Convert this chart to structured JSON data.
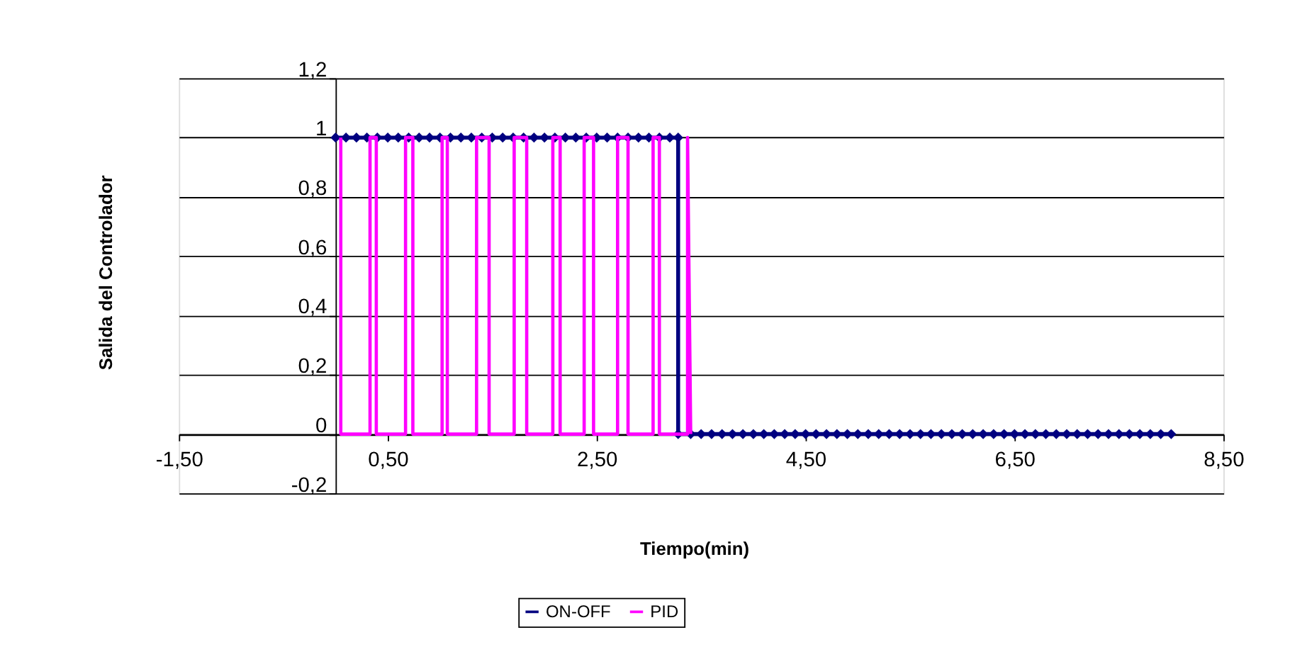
{
  "chart_data": {
    "type": "line",
    "xlabel": "Tiempo(min)",
    "ylabel": "Salida del Controlador",
    "xlim": [
      -1.5,
      8.5
    ],
    "xticks": [
      {
        "value": -1.5,
        "label": "-1,50"
      },
      {
        "value": 0.5,
        "label": "0,50"
      },
      {
        "value": 2.5,
        "label": "2,50"
      },
      {
        "value": 4.5,
        "label": "4,50"
      },
      {
        "value": 6.5,
        "label": "6,50"
      },
      {
        "value": 8.5,
        "label": "8,50"
      }
    ],
    "ylim": [
      -0.2,
      1.2
    ],
    "yticks": [
      {
        "value": -0.2,
        "label": "-0,2"
      },
      {
        "value": 0,
        "label": "0"
      },
      {
        "value": 0.2,
        "label": "0,2"
      },
      {
        "value": 0.4,
        "label": "0,4"
      },
      {
        "value": 0.6,
        "label": "0,6"
      },
      {
        "value": 0.8,
        "label": "0,8"
      },
      {
        "value": 1,
        "label": "1"
      },
      {
        "value": 1.2,
        "label": "1,2"
      }
    ],
    "grid": "y",
    "legend": "bottom",
    "line_style": "solid",
    "series": [
      {
        "name": "ON-OFF",
        "color": "#000080",
        "marker": "diamond",
        "x": [
          0,
          0.1,
          0.2,
          0.3,
          0.4,
          0.5,
          0.6,
          0.7,
          0.8,
          0.9,
          1.0,
          1.1,
          1.2,
          1.3,
          1.4,
          1.5,
          1.6,
          1.7,
          1.8,
          1.9,
          2.0,
          2.1,
          2.2,
          2.3,
          2.4,
          2.5,
          2.6,
          2.7,
          2.8,
          2.9,
          3.0,
          3.1,
          3.2,
          3.28,
          3.28,
          3.4,
          3.5,
          3.6,
          3.7,
          3.8,
          3.9,
          4.0,
          4.1,
          4.2,
          4.3,
          4.4,
          4.5,
          4.6,
          4.7,
          4.8,
          4.9,
          5.0,
          5.1,
          5.2,
          5.3,
          5.4,
          5.5,
          5.6,
          5.7,
          5.8,
          5.9,
          6.0,
          6.1,
          6.2,
          6.3,
          6.4,
          6.5,
          6.6,
          6.7,
          6.8,
          6.9,
          7.0,
          7.1,
          7.2,
          7.3,
          7.4,
          7.5,
          7.6,
          7.7,
          7.8,
          7.9,
          8.0
        ],
        "values": [
          1,
          1,
          1,
          1,
          1,
          1,
          1,
          1,
          1,
          1,
          1,
          1,
          1,
          1,
          1,
          1,
          1,
          1,
          1,
          1,
          1,
          1,
          1,
          1,
          1,
          1,
          1,
          1,
          1,
          1,
          1,
          1,
          1,
          1,
          0,
          0,
          0,
          0,
          0,
          0,
          0,
          0,
          0,
          0,
          0,
          0,
          0,
          0,
          0,
          0,
          0,
          0,
          0,
          0,
          0,
          0,
          0,
          0,
          0,
          0,
          0,
          0,
          0,
          0,
          0,
          0,
          0,
          0,
          0,
          0,
          0,
          0,
          0,
          0,
          0,
          0,
          0,
          0,
          0,
          0,
          0,
          0
        ]
      },
      {
        "name": "PID",
        "color": "#ff00ff",
        "marker": "none",
        "x": [
          0.05,
          0.05,
          0.33,
          0.33,
          0.39,
          0.39,
          0.67,
          0.67,
          0.74,
          0.74,
          1.02,
          1.02,
          1.07,
          1.07,
          1.35,
          1.35,
          1.47,
          1.47,
          1.71,
          1.71,
          1.83,
          1.83,
          2.08,
          2.08,
          2.15,
          2.15,
          2.38,
          2.38,
          2.47,
          2.47,
          2.7,
          2.7,
          2.8,
          2.8,
          3.04,
          3.04,
          3.1,
          3.1,
          3.37,
          3.37,
          3.4
        ],
        "values": [
          1,
          0,
          0,
          1,
          1,
          0,
          0,
          1,
          1,
          0,
          0,
          1,
          1,
          0,
          0,
          1,
          1,
          0,
          0,
          1,
          1,
          0,
          0,
          1,
          1,
          0,
          0,
          1,
          1,
          0,
          0,
          1,
          1,
          0,
          0,
          1,
          1,
          0,
          0,
          1,
          0
        ]
      }
    ]
  }
}
